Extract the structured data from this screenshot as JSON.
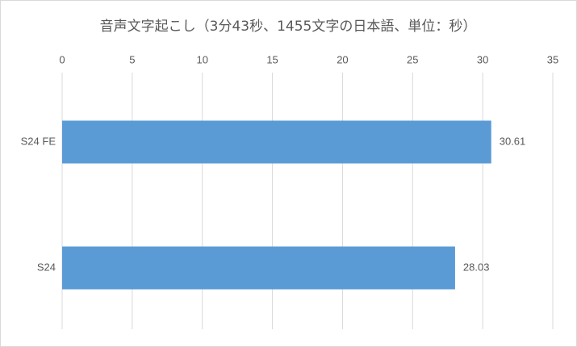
{
  "chart_data": {
    "type": "barh",
    "title": "音声文字起こし（3分43秒、1455文字の日本語、単位：秒）",
    "categories": [
      "S24 FE",
      "S24"
    ],
    "values": [
      30.61,
      28.03
    ],
    "color": "#5b9bd5",
    "xlim": [
      0,
      35
    ],
    "xticks": [
      0,
      5,
      10,
      15,
      20,
      25,
      30,
      35
    ],
    "grid": true
  }
}
